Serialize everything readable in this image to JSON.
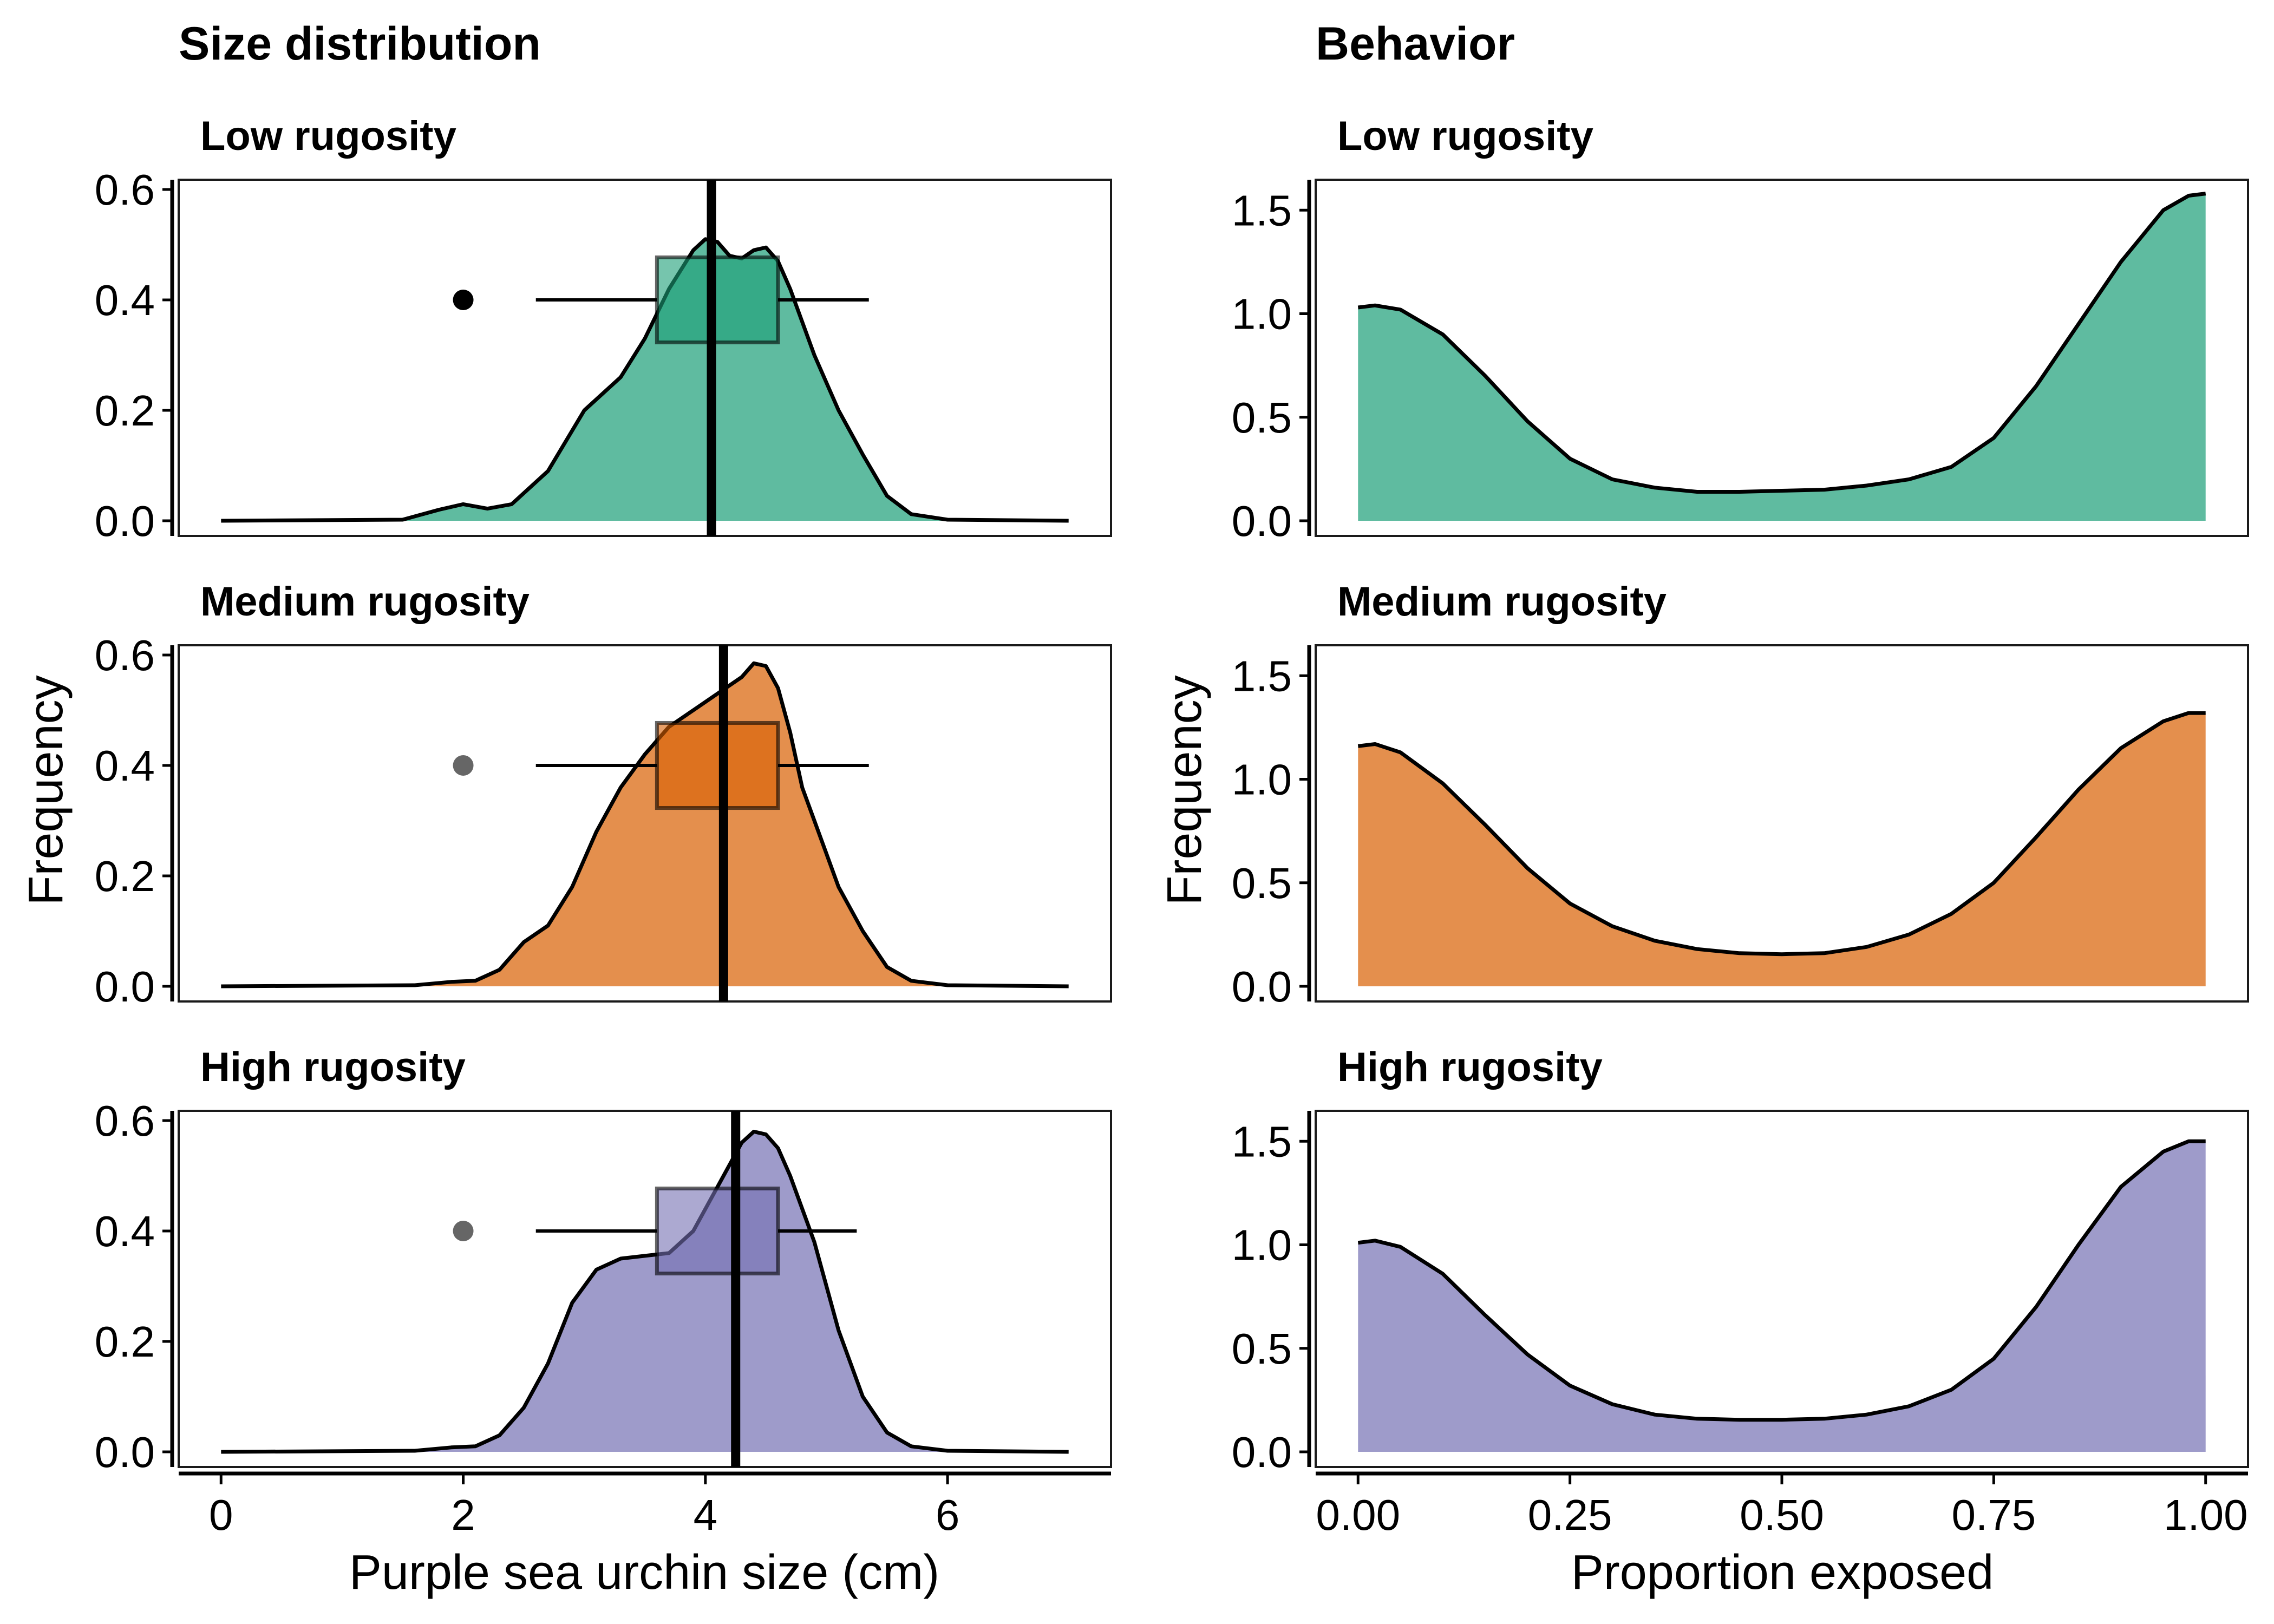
{
  "columns": {
    "left_title": "Size distribution",
    "right_title": "Behavior"
  },
  "panel_titles": [
    "Low rugosity",
    "Medium rugosity",
    "High rugosity"
  ],
  "axes": {
    "size_xlabel": "Purple sea urchin size (cm)",
    "behavior_xlabel": "Proportion exposed",
    "ylabel": "Frequency",
    "size_xticks": [
      "0",
      "2",
      "4",
      "6"
    ],
    "size_yticks": [
      "0.0",
      "0.2",
      "0.4",
      "0.6"
    ],
    "behavior_xticks": [
      "0.00",
      "0.25",
      "0.50",
      "0.75",
      "1.00"
    ],
    "behavior_yticks": [
      "0.0",
      "0.5",
      "1.0",
      "1.5"
    ]
  },
  "colors": {
    "low": "#1b9e77",
    "medium": "#d95f02",
    "high": "#7570b3"
  },
  "chart_data": [
    {
      "type": "area",
      "panel": "Low rugosity",
      "xlim": [
        -0.35,
        7.35
      ],
      "ylim": [
        0,
        0.6
      ],
      "x": [
        0,
        1.5,
        1.8,
        2.0,
        2.2,
        2.4,
        2.7,
        3.0,
        3.3,
        3.5,
        3.7,
        3.9,
        4.0,
        4.1,
        4.2,
        4.3,
        4.4,
        4.5,
        4.6,
        4.7,
        4.9,
        5.1,
        5.3,
        5.5,
        5.7,
        6.0,
        7.0
      ],
      "y": [
        0,
        0.002,
        0.02,
        0.03,
        0.022,
        0.03,
        0.09,
        0.2,
        0.26,
        0.33,
        0.42,
        0.49,
        0.51,
        0.505,
        0.48,
        0.475,
        0.49,
        0.495,
        0.47,
        0.42,
        0.3,
        0.2,
        0.12,
        0.045,
        0.012,
        0.002,
        0
      ],
      "boxplot": {
        "whisker_low": 2.6,
        "q1": 3.6,
        "median": 4.05,
        "q3": 4.6,
        "whisker_high": 5.35,
        "outliers": [
          2.0
        ]
      },
      "vline": 4.05
    },
    {
      "type": "area",
      "panel": "Medium rugosity",
      "xlim": [
        -0.35,
        7.35
      ],
      "ylim": [
        0,
        0.6
      ],
      "x": [
        0,
        1.6,
        1.9,
        2.1,
        2.3,
        2.5,
        2.7,
        2.9,
        3.1,
        3.3,
        3.5,
        3.7,
        3.9,
        4.1,
        4.3,
        4.4,
        4.5,
        4.6,
        4.7,
        4.8,
        4.9,
        5.1,
        5.3,
        5.5,
        5.7,
        6.0,
        7.0
      ],
      "y": [
        0,
        0.002,
        0.008,
        0.01,
        0.03,
        0.08,
        0.11,
        0.18,
        0.28,
        0.36,
        0.42,
        0.47,
        0.5,
        0.53,
        0.56,
        0.585,
        0.58,
        0.54,
        0.46,
        0.36,
        0.3,
        0.18,
        0.1,
        0.035,
        0.01,
        0.002,
        0
      ],
      "boxplot": {
        "whisker_low": 2.6,
        "q1": 3.6,
        "median": 4.15,
        "q3": 4.6,
        "whisker_high": 5.35,
        "outliers": [
          2.0
        ]
      },
      "vline": 4.15
    },
    {
      "type": "area",
      "panel": "High rugosity",
      "xlim": [
        -0.35,
        7.35
      ],
      "ylim": [
        0,
        0.6
      ],
      "x": [
        0,
        1.6,
        1.9,
        2.1,
        2.3,
        2.5,
        2.7,
        2.9,
        3.1,
        3.3,
        3.5,
        3.7,
        3.9,
        4.1,
        4.3,
        4.4,
        4.5,
        4.6,
        4.7,
        4.9,
        5.1,
        5.3,
        5.5,
        5.7,
        6.0,
        7.0
      ],
      "y": [
        0,
        0.002,
        0.008,
        0.01,
        0.03,
        0.08,
        0.16,
        0.27,
        0.33,
        0.35,
        0.355,
        0.36,
        0.4,
        0.48,
        0.56,
        0.58,
        0.575,
        0.55,
        0.5,
        0.38,
        0.22,
        0.1,
        0.035,
        0.01,
        0.002,
        0
      ],
      "boxplot": {
        "whisker_low": 2.6,
        "q1": 3.6,
        "median": 4.25,
        "q3": 4.6,
        "whisker_high": 5.25,
        "outliers": [
          2.0
        ]
      },
      "vline": 4.25
    },
    {
      "type": "area",
      "panel": "Low rugosity",
      "xlim": [
        -0.05,
        1.05
      ],
      "ylim": [
        0,
        1.6
      ],
      "x": [
        0,
        0.02,
        0.05,
        0.1,
        0.15,
        0.2,
        0.25,
        0.3,
        0.35,
        0.4,
        0.45,
        0.5,
        0.55,
        0.6,
        0.65,
        0.7,
        0.75,
        0.8,
        0.85,
        0.9,
        0.95,
        0.98,
        1.0
      ],
      "y": [
        1.03,
        1.04,
        1.02,
        0.9,
        0.7,
        0.48,
        0.3,
        0.2,
        0.16,
        0.14,
        0.14,
        0.145,
        0.15,
        0.17,
        0.2,
        0.26,
        0.4,
        0.65,
        0.95,
        1.25,
        1.5,
        1.57,
        1.58
      ],
      "ylabels_shown": true
    },
    {
      "type": "area",
      "panel": "Medium rugosity",
      "xlim": [
        -0.05,
        1.05
      ],
      "ylim": [
        0,
        1.6
      ],
      "x": [
        0,
        0.02,
        0.05,
        0.1,
        0.15,
        0.2,
        0.25,
        0.3,
        0.35,
        0.4,
        0.45,
        0.5,
        0.55,
        0.6,
        0.65,
        0.7,
        0.75,
        0.8,
        0.85,
        0.9,
        0.95,
        0.98,
        1.0
      ],
      "y": [
        1.16,
        1.17,
        1.13,
        0.98,
        0.78,
        0.57,
        0.4,
        0.29,
        0.22,
        0.18,
        0.16,
        0.155,
        0.16,
        0.19,
        0.25,
        0.35,
        0.5,
        0.72,
        0.95,
        1.15,
        1.28,
        1.32,
        1.32
      ]
    },
    {
      "type": "area",
      "panel": "High rugosity",
      "xlim": [
        -0.05,
        1.05
      ],
      "ylim": [
        0,
        1.6
      ],
      "x": [
        0,
        0.02,
        0.05,
        0.1,
        0.15,
        0.2,
        0.25,
        0.3,
        0.35,
        0.4,
        0.45,
        0.5,
        0.55,
        0.6,
        0.65,
        0.7,
        0.75,
        0.8,
        0.85,
        0.9,
        0.95,
        0.98,
        1.0
      ],
      "y": [
        1.01,
        1.02,
        0.99,
        0.86,
        0.66,
        0.47,
        0.32,
        0.23,
        0.18,
        0.16,
        0.155,
        0.155,
        0.16,
        0.18,
        0.22,
        0.3,
        0.45,
        0.7,
        1.0,
        1.28,
        1.45,
        1.5,
        1.5
      ]
    }
  ]
}
